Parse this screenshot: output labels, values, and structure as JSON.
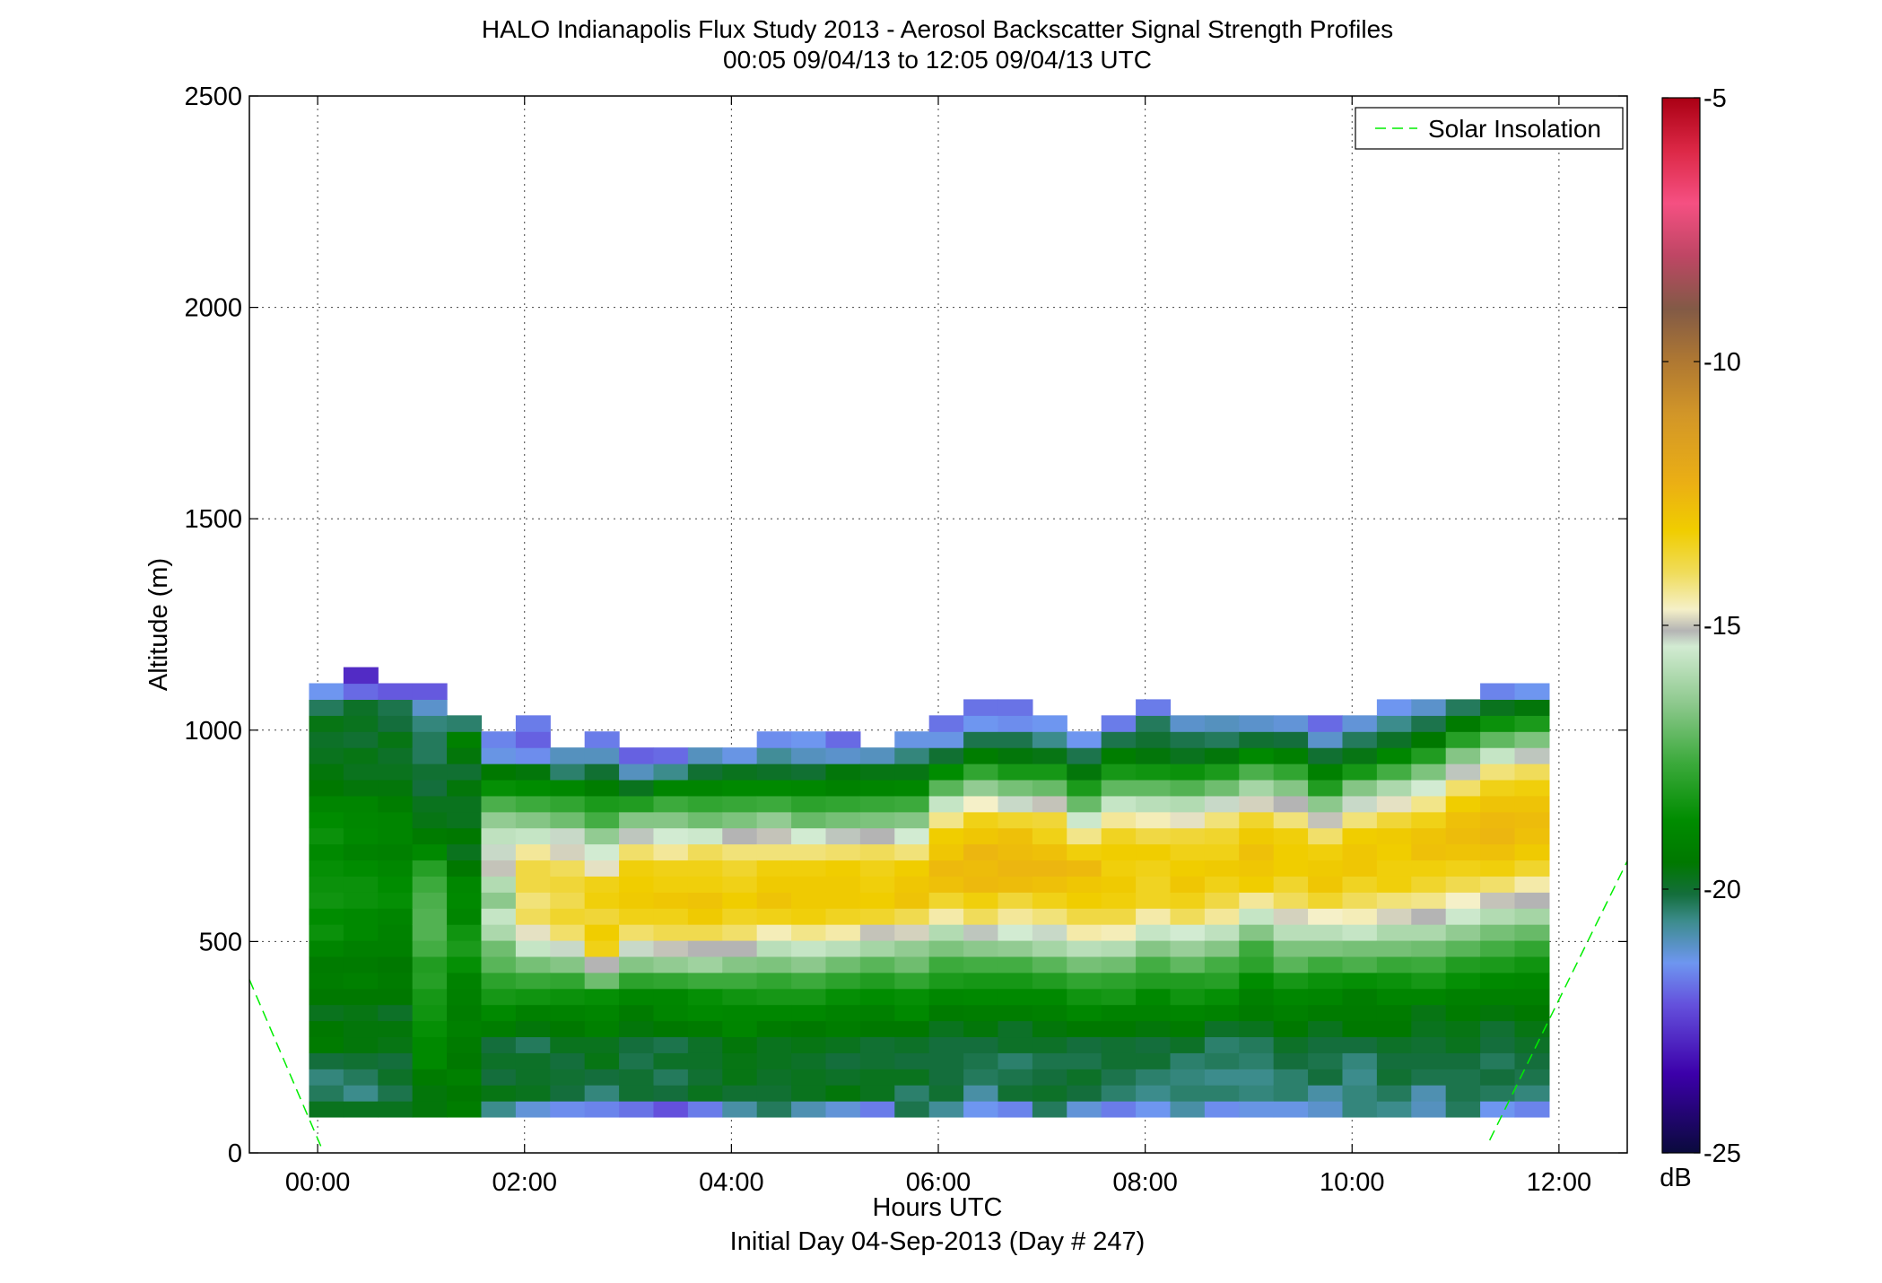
{
  "chart_data": {
    "type": "heatmap",
    "title": "HALO Indianapolis Flux Study 2013 - Aerosol Backscatter Signal Strength Profiles",
    "subtitle": "00:05 09/04/13 to 12:05 09/04/13  UTC",
    "xlabel": "Hours UTC",
    "xlabel2": "Initial Day 04-Sep-2013 (Day # 247)",
    "ylabel": "Altitude (m)",
    "xlim": [
      -0.66,
      12.66
    ],
    "ylim": [
      0,
      2500
    ],
    "xticks": [
      0,
      2,
      4,
      6,
      8,
      10,
      12
    ],
    "xtick_labels": [
      "00:00",
      "02:00",
      "04:00",
      "06:00",
      "08:00",
      "10:00",
      "12:00"
    ],
    "yticks": [
      0,
      500,
      1000,
      1500,
      2000,
      2500
    ],
    "ytick_labels": [
      "0",
      "500",
      "1000",
      "1500",
      "2000",
      "2500"
    ],
    "grid": true,
    "legend": {
      "position": "top-right",
      "entries": [
        "Solar Insolation"
      ]
    },
    "colorbar": {
      "label": "dB",
      "range": [
        -25,
        -5
      ],
      "ticks": [
        -25,
        -20,
        -15,
        -10,
        -5
      ],
      "tick_labels": [
        "-25",
        "-20",
        "-15",
        "-10",
        "-5"
      ]
    },
    "heatmap": {
      "time_start_hours": 0.083,
      "time_step_hours": 0.333,
      "altitude_start_m": 85,
      "altitude_step_m": 38,
      "units": "dB",
      "profiles": [
        [
          -19.8,
          -20.3,
          -20.5,
          -20.1,
          -19.4,
          -19.5,
          -19.8,
          -19.5,
          -19.3,
          -19.4,
          -19.0,
          -18.5,
          -18.7,
          -18.4,
          -18.5,
          -18.6,
          -18.8,
          -18.5,
          -18.7,
          -19.0,
          -19.5,
          -19.6,
          -19.8,
          -19.9,
          -19.7,
          -20.3,
          -21.4
        ],
        [
          -19.8,
          -20.6,
          -20.3,
          -20.0,
          -19.6,
          -19.6,
          -19.7,
          -19.5,
          -19.2,
          -19.4,
          -19.2,
          -18.8,
          -18.8,
          -18.5,
          -18.5,
          -18.7,
          -19.1,
          -18.8,
          -18.9,
          -19.0,
          -19.6,
          -19.8,
          -19.7,
          -20.0,
          -19.8,
          -19.9,
          -21.9,
          -22.8
        ],
        [
          -19.8,
          -20.2,
          -19.9,
          -20.1,
          -19.7,
          -19.6,
          -19.9,
          -19.5,
          -19.4,
          -19.5,
          -19.2,
          -19.1,
          -19.0,
          -18.6,
          -18.7,
          -18.9,
          -19.2,
          -19.0,
          -19.0,
          -19.3,
          -19.6,
          -19.8,
          -19.9,
          -19.7,
          -20.1,
          -20.2,
          -22.1
        ],
        [
          -19.6,
          -19.6,
          -19.4,
          -18.8,
          -18.8,
          -18.6,
          -18.4,
          -18.3,
          -18.0,
          -18.1,
          -17.5,
          -17.3,
          -17.3,
          -17.4,
          -17.6,
          -18.0,
          -18.8,
          -19.4,
          -19.7,
          -19.8,
          -20.1,
          -20.0,
          -20.3,
          -20.3,
          -20.5,
          -21.1,
          -22.1
        ],
        [
          -19.3,
          -19.5,
          -19.2,
          -19.5,
          -19.4,
          -19.2,
          -19.3,
          -19.2,
          -19.1,
          -18.6,
          -18.2,
          -18.4,
          -19.0,
          -18.8,
          -18.9,
          -19.5,
          -19.8,
          -19.5,
          -19.8,
          -19.8,
          -19.6,
          -20.0,
          -19.6,
          -19.2,
          -20.4
        ],
        [
          -20.6,
          -19.7,
          -20.1,
          -19.9,
          -20.1,
          -19.3,
          -18.8,
          -18.3,
          -17.9,
          -17.2,
          -16.9,
          -16.0,
          -15.6,
          -16.5,
          -15.9,
          -15.0,
          -15.3,
          -15.7,
          -16.4,
          -17.4,
          -18.6,
          -19.5,
          -21.3,
          -21.6
        ],
        [
          -21.2,
          -19.8,
          -19.9,
          -19.9,
          -20.3,
          -19.6,
          -19.2,
          -18.4,
          -17.7,
          -16.8,
          -15.6,
          -14.8,
          -14.0,
          -14.2,
          -13.8,
          -13.8,
          -14.4,
          -15.6,
          -16.6,
          -17.6,
          -18.7,
          -19.6,
          -21.5,
          -22.0,
          -21.7
        ],
        [
          -21.5,
          -20.1,
          -20.0,
          -20.1,
          -19.8,
          -19.5,
          -19.1,
          -18.5,
          -17.8,
          -16.6,
          -15.3,
          -14.1,
          -13.6,
          -13.9,
          -13.7,
          -14.0,
          -14.9,
          -15.3,
          -16.9,
          -17.8,
          -18.9,
          -20.4,
          -21.0
        ],
        [
          -21.6,
          -20.5,
          -20.1,
          -19.7,
          -19.8,
          -19.2,
          -19.0,
          -18.6,
          -16.9,
          -15.1,
          -13.4,
          -13.2,
          -13.7,
          -13.3,
          -13.4,
          -14.8,
          -15.4,
          -16.4,
          -17.5,
          -18.2,
          -19.3,
          -20.0,
          -21.0,
          -21.7
        ],
        [
          -21.8,
          -20.0,
          -20.0,
          -20.2,
          -20.1,
          -19.6,
          -19.4,
          -18.9,
          -17.9,
          -16.6,
          -15.3,
          -14.1,
          -13.4,
          -13.1,
          -13.2,
          -13.3,
          -14.1,
          -15.2,
          -16.6,
          -18.1,
          -19.8,
          -21.0,
          -22.0
        ],
        [
          -22.2,
          -20.1,
          -20.3,
          -19.9,
          -20.2,
          -19.5,
          -19.0,
          -18.9,
          -17.8,
          -16.4,
          -15.0,
          -13.9,
          -13.4,
          -13.0,
          -13.3,
          -13.4,
          -14.4,
          -15.4,
          -16.6,
          -17.6,
          -19.0,
          -20.6,
          -21.9
        ],
        [
          -21.7,
          -19.8,
          -20.0,
          -19.9,
          -19.9,
          -19.4,
          -18.8,
          -18.6,
          -17.6,
          -16.2,
          -15.1,
          -13.9,
          -13.1,
          -12.9,
          -13.3,
          -13.4,
          -14.0,
          -15.5,
          -16.9,
          -17.8,
          -19.0,
          -20.0,
          -21.0
        ],
        [
          -20.8,
          -20.0,
          -19.7,
          -19.7,
          -19.6,
          -19.0,
          -18.9,
          -18.4,
          -17.6,
          -16.6,
          -15.1,
          -14.1,
          -13.5,
          -13.2,
          -13.4,
          -13.6,
          -14.2,
          -15.1,
          -16.7,
          -17.7,
          -18.8,
          -19.8,
          -21.3
        ],
        [
          -20.3,
          -20.0,
          -19.9,
          -19.8,
          -19.8,
          -19.4,
          -18.9,
          -18.3,
          -17.8,
          -16.7,
          -15.8,
          -14.6,
          -13.4,
          -12.9,
          -13.1,
          -13.3,
          -14.2,
          -15.0,
          -16.4,
          -17.6,
          -18.8,
          -19.9,
          -20.7,
          -21.5
        ],
        [
          -20.9,
          -19.8,
          -19.8,
          -19.9,
          -19.7,
          -19.5,
          -18.9,
          -18.3,
          -17.6,
          -16.5,
          -15.6,
          -14.3,
          -13.3,
          -13.1,
          -13.1,
          -13.3,
          -14.2,
          -15.4,
          -17.0,
          -17.9,
          -18.9,
          -20.0,
          -21.0,
          -21.4
        ],
        [
          -21.2,
          -19.6,
          -19.9,
          -20.1,
          -19.8,
          -19.3,
          -19.1,
          -18.6,
          -17.9,
          -16.9,
          -15.8,
          -14.5,
          -13.5,
          -13.1,
          -13.1,
          -13.2,
          -14.1,
          -15.2,
          -16.8,
          -17.8,
          -19.1,
          -19.6,
          -21.1,
          -21.9
        ],
        [
          -21.7,
          -19.8,
          -19.8,
          -20.0,
          -20.0,
          -19.5,
          -19.2,
          -18.7,
          -18.1,
          -17.2,
          -16.1,
          -15.0,
          -13.6,
          -13.2,
          -13.3,
          -13.4,
          -14.0,
          -15.1,
          -16.7,
          -17.7,
          -19.0,
          -19.7,
          -21.0
        ],
        [
          -20.2,
          -20.4,
          -19.8,
          -20.1,
          -19.9,
          -19.5,
          -18.8,
          -18.6,
          -17.8,
          -16.9,
          -16.4,
          -14.9,
          -13.9,
          -12.9,
          -13.0,
          -13.2,
          -14.2,
          -15.4,
          -16.6,
          -17.6,
          -18.9,
          -19.7,
          -20.5,
          -21.3
        ],
        [
          -20.7,
          -20.0,
          -20.1,
          -20.1,
          -20.1,
          -19.8,
          -19.4,
          -18.9,
          -18.2,
          -17.6,
          -16.7,
          -15.9,
          -14.5,
          -13.6,
          -12.8,
          -12.6,
          -13.0,
          -13.2,
          -14.3,
          -15.6,
          -17.2,
          -18.7,
          -20.0,
          -21.3,
          -21.8
        ],
        [
          -21.4,
          -20.8,
          -20.3,
          -20.2,
          -20.1,
          -19.6,
          -19.3,
          -18.8,
          -18.3,
          -17.5,
          -16.5,
          -15.2,
          -14.0,
          -13.3,
          -12.6,
          -12.7,
          -12.5,
          -13.0,
          -13.4,
          -14.7,
          -16.4,
          -17.8,
          -19.3,
          -20.2,
          -21.4,
          -21.8
        ],
        [
          -21.6,
          -20.0,
          -20.2,
          -20.4,
          -19.9,
          -19.9,
          -19.3,
          -18.8,
          -18.3,
          -17.5,
          -16.4,
          -15.4,
          -14.4,
          -13.7,
          -12.7,
          -12.5,
          -12.7,
          -12.8,
          -13.6,
          -15.3,
          -16.8,
          -18.3,
          -19.6,
          -20.2,
          -21.5,
          -21.8
        ],
        [
          -20.3,
          -19.9,
          -20.1,
          -20.2,
          -19.9,
          -19.6,
          -19.2,
          -18.8,
          -18.1,
          -17.2,
          -16.1,
          -15.3,
          -14.2,
          -13.4,
          -12.8,
          -12.5,
          -12.8,
          -13.4,
          -13.7,
          -15.0,
          -17.0,
          -18.3,
          -19.7,
          -20.6,
          -21.4
        ],
        [
          -21.2,
          -20.1,
          -19.9,
          -20.2,
          -20.1,
          -19.5,
          -18.9,
          -18.4,
          -17.8,
          -16.8,
          -15.8,
          -14.5,
          -13.8,
          -13.2,
          -13.0,
          -12.6,
          -13.3,
          -14.3,
          -15.5,
          -17.0,
          -18.2,
          -19.6,
          -20.2,
          -21.4
        ],
        [
          -21.7,
          -20.4,
          -20.2,
          -20.0,
          -20.0,
          -19.5,
          -19.1,
          -18.3,
          -17.9,
          -16.9,
          -15.9,
          -14.6,
          -13.8,
          -13.3,
          -13.1,
          -13.3,
          -13.2,
          -13.5,
          -14.4,
          -15.6,
          -17.1,
          -18.3,
          -19.3,
          -20.2,
          -21.7
        ],
        [
          -21.4,
          -20.6,
          -20.4,
          -20.0,
          -20.1,
          -19.6,
          -19.1,
          -18.8,
          -18.1,
          -17.5,
          -16.6,
          -15.6,
          -14.5,
          -13.5,
          -13.5,
          -13.4,
          -13.2,
          -13.8,
          -14.6,
          -15.8,
          -17.1,
          -18.4,
          -19.6,
          -20.0,
          -20.3,
          -21.7
        ],
        [
          -20.8,
          -20.4,
          -20.5,
          -20.4,
          -19.9,
          -19.4,
          -19.0,
          -18.4,
          -18.1,
          -17.1,
          -16.3,
          -15.4,
          -14.0,
          -13.4,
          -13.0,
          -13.2,
          -13.4,
          -13.7,
          -14.8,
          -15.9,
          -17.3,
          -18.5,
          -19.8,
          -20.2,
          -21.1
        ],
        [
          -21.5,
          -20.4,
          -20.6,
          -20.3,
          -20.4,
          -19.9,
          -19.1,
          -18.6,
          -18.0,
          -17.5,
          -16.6,
          -15.7,
          -14.4,
          -13.8,
          -13.4,
          -13.1,
          -13.4,
          -13.6,
          -14.2,
          -15.3,
          -16.9,
          -18.2,
          -19.6,
          -20.3,
          -21.0
        ],
        [
          -21.3,
          -20.5,
          -20.6,
          -20.4,
          -20.3,
          -19.8,
          -19.4,
          -19.2,
          -18.7,
          -17.9,
          -17.6,
          -16.6,
          -15.6,
          -14.4,
          -13.2,
          -13.0,
          -12.8,
          -13.1,
          -13.6,
          -14.9,
          -16.1,
          -17.4,
          -18.8,
          -20.0,
          -21.1
        ],
        [
          -21.3,
          -20.4,
          -20.4,
          -20.1,
          -19.9,
          -19.5,
          -19.2,
          -18.9,
          -18.3,
          -17.2,
          -16.7,
          -15.8,
          -14.9,
          -14.0,
          -13.6,
          -13.2,
          -13.2,
          -13.3,
          -14.2,
          -15.1,
          -16.6,
          -17.8,
          -19.2,
          -20.1,
          -21.2
        ],
        [
          -21.1,
          -20.8,
          -20.1,
          -20.2,
          -20.1,
          -19.8,
          -19.4,
          -19.0,
          -18.5,
          -17.6,
          -16.7,
          -15.8,
          -14.7,
          -13.6,
          -13.0,
          -13.1,
          -13.3,
          -14.1,
          -15.0,
          -16.5,
          -18.1,
          -19.2,
          -20.0,
          -21.1,
          -21.9
        ],
        [
          -20.5,
          -20.5,
          -20.6,
          -20.5,
          -20.1,
          -19.5,
          -19.4,
          -19.3,
          -18.6,
          -17.4,
          -16.8,
          -15.6,
          -14.6,
          -14.0,
          -13.5,
          -13.0,
          -13.0,
          -13.2,
          -14.2,
          -15.3,
          -16.6,
          -18.3,
          -19.7,
          -20.3,
          -21.2
        ],
        [
          -20.6,
          -20.3,
          -20.0,
          -20.1,
          -19.9,
          -19.5,
          -19.4,
          -19.0,
          -18.5,
          -17.7,
          -16.8,
          -16.0,
          -14.9,
          -14.2,
          -13.3,
          -13.3,
          -13.2,
          -13.1,
          -13.7,
          -14.8,
          -16.0,
          -17.5,
          -18.9,
          -19.9,
          -20.6,
          -21.4
        ],
        [
          -21.0,
          -20.9,
          -20.2,
          -20.1,
          -20.0,
          -19.8,
          -19.7,
          -19.0,
          -18.3,
          -17.6,
          -16.9,
          -16.0,
          -15.1,
          -14.3,
          -13.6,
          -13.3,
          -12.8,
          -12.9,
          -13.4,
          -14.3,
          -15.4,
          -16.7,
          -18.1,
          -19.5,
          -20.2,
          -21.1
        ],
        [
          -20.3,
          -20.2,
          -20.2,
          -20.1,
          -19.8,
          -19.7,
          -19.4,
          -19.2,
          -18.6,
          -18.1,
          -17.2,
          -16.4,
          -15.5,
          -14.7,
          -13.9,
          -13.4,
          -12.9,
          -12.7,
          -12.8,
          -13.2,
          -14.1,
          -15.2,
          -16.6,
          -18.0,
          -19.4,
          -20.3
        ],
        [
          -21.4,
          -20.3,
          -20.1,
          -20.3,
          -20.1,
          -20.0,
          -19.6,
          -19.2,
          -18.8,
          -18.2,
          -17.5,
          -16.8,
          -15.9,
          -15.0,
          -14.1,
          -13.3,
          -12.8,
          -12.5,
          -12.6,
          -12.9,
          -13.4,
          -14.2,
          -15.6,
          -17.1,
          -18.5,
          -19.8,
          -21.6
        ],
        [
          -21.6,
          -20.5,
          -20.2,
          -20.1,
          -19.9,
          -19.7,
          -19.5,
          -19.2,
          -18.9,
          -18.4,
          -17.8,
          -17.0,
          -16.1,
          -15.1,
          -14.5,
          -13.6,
          -13.1,
          -12.8,
          -12.7,
          -12.9,
          -13.3,
          -14.0,
          -15.2,
          -16.7,
          -18.2,
          -19.6,
          -21.4
        ]
      ]
    },
    "solar_insolation_line": {
      "name": "Solar Insolation",
      "color": "#00dd00",
      "segments": [
        {
          "x": [
            -0.66,
            0.05
          ],
          "y": [
            410,
            5
          ]
        },
        {
          "x": [
            11.33,
            12.66
          ],
          "y": [
            30,
            690
          ]
        }
      ]
    }
  },
  "colors": {
    "line": "#00ee00",
    "axis": "#000000",
    "grid": "#000000"
  }
}
